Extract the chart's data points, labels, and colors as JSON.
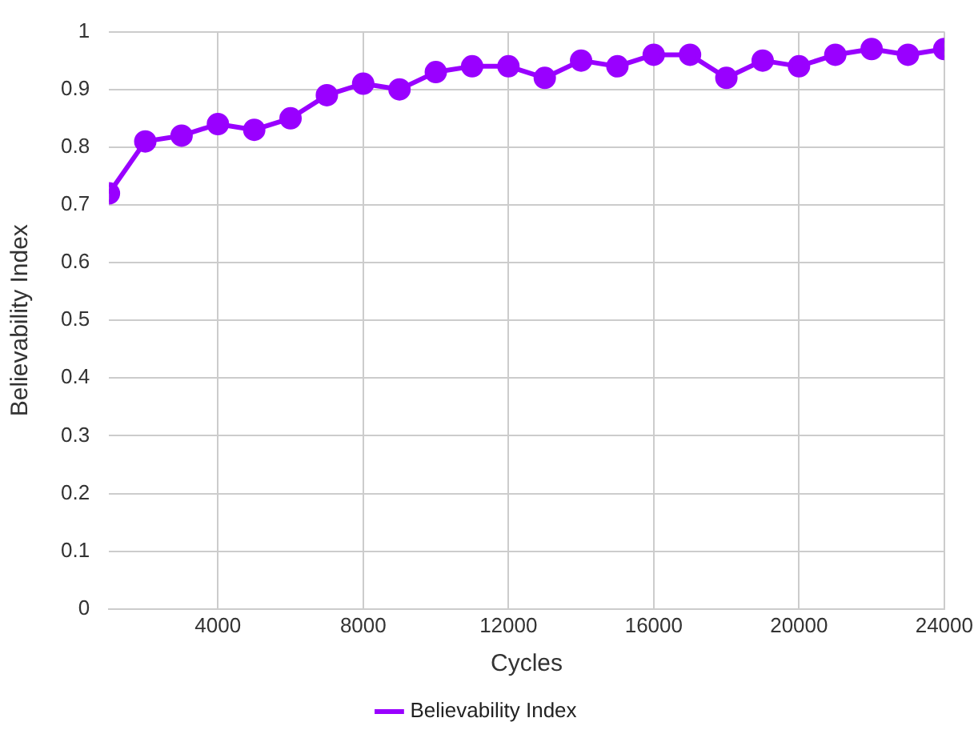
{
  "chart_data": {
    "type": "line",
    "xlabel": "Cycles",
    "ylabel": "Believability Index",
    "x": [
      1000,
      2000,
      3000,
      4000,
      5000,
      6000,
      7000,
      8000,
      9000,
      10000,
      11000,
      12000,
      13000,
      14000,
      15000,
      16000,
      17000,
      18000,
      19000,
      20000,
      21000,
      22000,
      23000,
      24000
    ],
    "series": [
      {
        "name": "Believability Index",
        "color": "#9900ff",
        "values": [
          0.72,
          0.81,
          0.82,
          0.84,
          0.83,
          0.85,
          0.89,
          0.91,
          0.9,
          0.93,
          0.94,
          0.94,
          0.92,
          0.95,
          0.94,
          0.96,
          0.96,
          0.92,
          0.95,
          0.94,
          0.96,
          0.97,
          0.96,
          0.97
        ]
      }
    ],
    "xlim": [
      1000,
      24000
    ],
    "xticks": [
      4000,
      8000,
      12000,
      16000,
      20000,
      24000
    ],
    "ylim": [
      0,
      1
    ],
    "yticks": [
      0,
      0.1,
      0.2,
      0.3,
      0.4,
      0.5,
      0.6,
      0.7,
      0.8,
      0.9,
      1
    ],
    "grid": true,
    "legend": "bottom",
    "marker": "circle",
    "line_style": "solid"
  }
}
